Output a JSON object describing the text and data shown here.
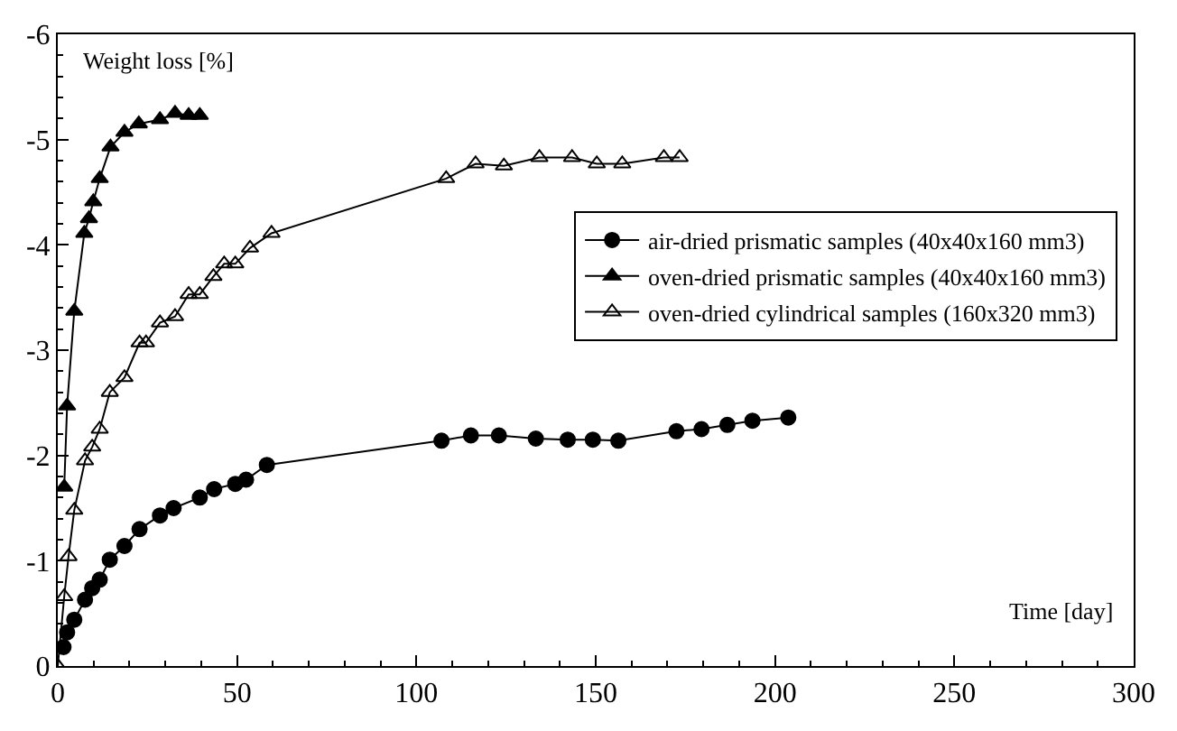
{
  "chart_data": {
    "type": "line",
    "xlabel": "Time [day]",
    "ylabel": "Weight loss [%]",
    "xlim": [
      0,
      300
    ],
    "xticks": [
      0,
      50,
      100,
      150,
      200,
      250,
      300
    ],
    "ylim": [
      0,
      -6
    ],
    "yticks": [
      0,
      -1,
      -2,
      -3,
      -4,
      -5,
      -6
    ],
    "legend": "right",
    "line_style": "solid",
    "series": [
      {
        "name": "air-dried prismatic samples (40x40x160 mm3)",
        "color": "#000000",
        "marker": "circle",
        "x": [
          1.6,
          2.6,
          4.6,
          7.6,
          9.6,
          11.7,
          14.5,
          18.6,
          22.8,
          28.5,
          32.3,
          39.6,
          43.6,
          49.5,
          52.5,
          58.3,
          107,
          115.2,
          123,
          133.3,
          142.2,
          149.2,
          156.3,
          172.5,
          179.5,
          186.7,
          193.7,
          203.7
        ],
        "values": [
          -0.18,
          -0.32,
          -0.44,
          -0.63,
          -0.74,
          -0.82,
          -1.01,
          -1.14,
          -1.3,
          -1.43,
          -1.5,
          -1.6,
          -1.68,
          -1.73,
          -1.77,
          -1.91,
          -2.14,
          -2.19,
          -2.19,
          -2.16,
          -2.15,
          -2.15,
          -2.14,
          -2.23,
          -2.25,
          -2.29,
          -2.33,
          -2.36
        ]
      },
      {
        "name": "oven-dried prismatic samples (40x40x160 mm3)",
        "color": "#000000",
        "marker": "triangle",
        "x": [
          1.8,
          2.6,
          4.6,
          7.4,
          8.7,
          9.9,
          11.7,
          14.7,
          18.6,
          22.6,
          28.5,
          32.7,
          36.5,
          39.6
        ],
        "values": [
          -1.7,
          -2.47,
          -3.37,
          -4.11,
          -4.25,
          -4.41,
          -4.63,
          -4.93,
          -5.07,
          -5.15,
          -5.19,
          -5.25,
          -5.23,
          -5.23
        ]
      },
      {
        "name": "oven-dried cylindrical samples (160x320 mm3)",
        "color": "#000000",
        "marker": "triangle-open",
        "x": [
          0,
          1.8,
          3,
          4.6,
          7.6,
          9.6,
          11.7,
          14.5,
          18.6,
          22.8,
          24.6,
          28.5,
          32.7,
          36.5,
          39.6,
          43.4,
          46.4,
          49.5,
          53.6,
          59.6,
          108.3,
          116.5,
          124.4,
          134.3,
          143.4,
          150.3,
          157.4,
          169,
          173.4
        ],
        "values": [
          0,
          -0.66,
          -1.04,
          -1.48,
          -1.95,
          -2.08,
          -2.25,
          -2.6,
          -2.74,
          -3.07,
          -3.07,
          -3.26,
          -3.32,
          -3.53,
          -3.53,
          -3.7,
          -3.82,
          -3.82,
          -3.97,
          -4.11,
          -4.63,
          -4.77,
          -4.75,
          -4.83,
          -4.83,
          -4.77,
          -4.77,
          -4.83,
          -4.83
        ]
      }
    ]
  }
}
